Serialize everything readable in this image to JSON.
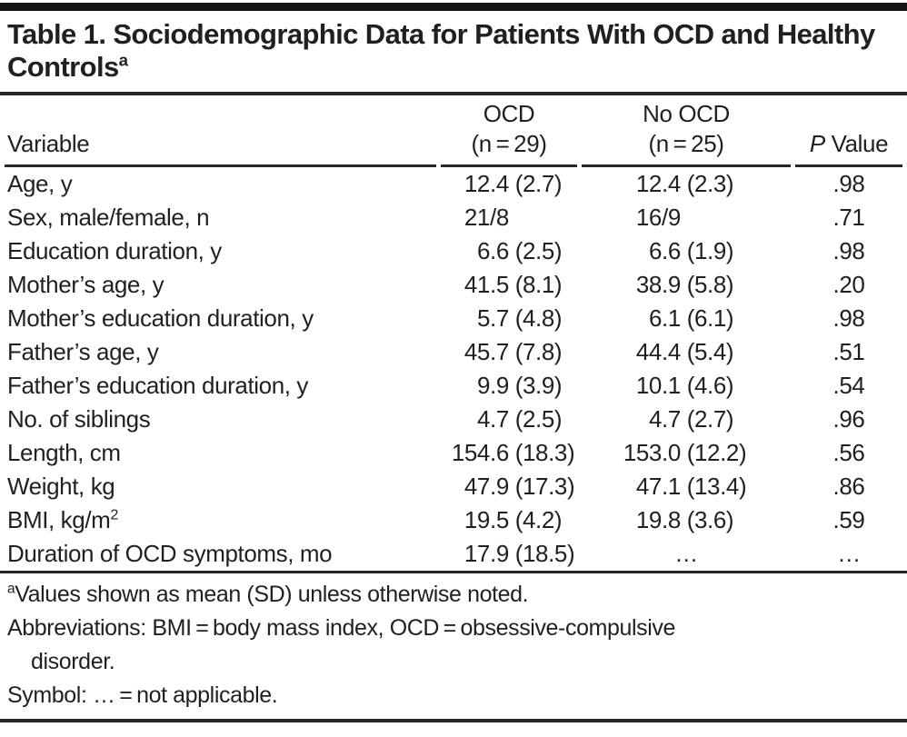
{
  "title": {
    "text": "Table 1. Sociodemographic Data for Patients With OCD and Healthy Controls",
    "superscript": "a"
  },
  "header": {
    "variable": "Variable",
    "ocd_line1": "OCD",
    "ocd_line2": "(n = 29)",
    "no_ocd_line1": "No OCD",
    "no_ocd_line2": "(n = 25)",
    "p_italic": "P",
    "p_rest": "Value"
  },
  "table": {
    "rows": [
      {
        "variable": "Age, y",
        "ocd": "12.4 (2.7)",
        "no_ocd": "12.4 (2.3)",
        "p": ".98"
      },
      {
        "variable": "Sex, male/female, n",
        "ocd": "21/8",
        "no_ocd": "16/9",
        "p": ".71"
      },
      {
        "variable": "Education duration, y",
        "ocd": "6.6 (2.5)",
        "no_ocd": "6.6 (1.9)",
        "p": ".98"
      },
      {
        "variable": "Mother’s age, y",
        "ocd": "41.5 (8.1)",
        "no_ocd": "38.9 (5.8)",
        "p": ".20"
      },
      {
        "variable": "Mother’s education duration, y",
        "ocd": "5.7 (4.8)",
        "no_ocd": "6.1 (6.1)",
        "p": ".98"
      },
      {
        "variable": "Father’s age, y",
        "ocd": "45.7 (7.8)",
        "no_ocd": "44.4 (5.4)",
        "p": ".51"
      },
      {
        "variable": "Father’s education duration, y",
        "ocd": "9.9 (3.9)",
        "no_ocd": "10.1 (4.6)",
        "p": ".54"
      },
      {
        "variable": "No. of siblings",
        "ocd": "4.7 (2.5)",
        "no_ocd": "4.7 (2.7)",
        "p": ".96"
      },
      {
        "variable": "Length, cm",
        "ocd": "154.6 (18.3)",
        "no_ocd": "153.0 (12.2)",
        "p": ".56"
      },
      {
        "variable": "Weight, kg",
        "ocd": "47.9 (17.3)",
        "no_ocd": "47.1 (13.4)",
        "p": ".86"
      },
      {
        "variable": "BMI, kg/m",
        "variable_sup": "2",
        "ocd": "19.5 (4.2)",
        "no_ocd": "19.8 (3.6)",
        "p": ".59"
      },
      {
        "variable": "Duration of OCD symptoms, mo",
        "ocd": "17.9 (18.5)",
        "no_ocd": "…",
        "p": "…"
      }
    ]
  },
  "footnotes": {
    "note_a_sup": "a",
    "note_a": "Values shown as mean (SD) unless otherwise noted.",
    "abbreviations_line1": "Abbreviations: BMI = body mass index, OCD = obsessive-compulsive",
    "abbreviations_line2": "disorder.",
    "symbol": "Symbol: … = not applicable."
  }
}
